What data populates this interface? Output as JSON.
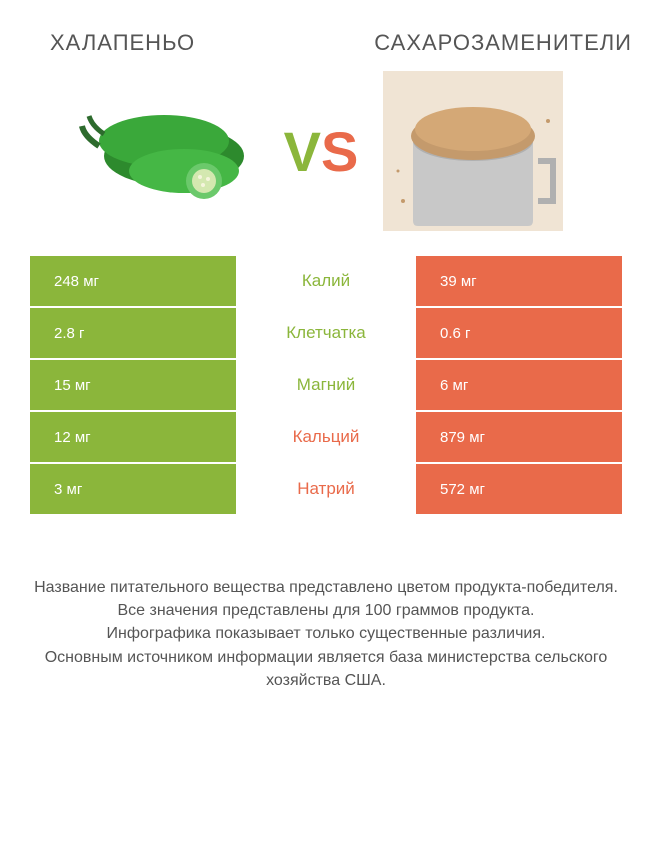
{
  "colors": {
    "left": "#8bb63b",
    "right": "#e96a4a",
    "title": "#555555",
    "footer": "#555555",
    "white": "#ffffff"
  },
  "header": {
    "left_title": "Халапеньо",
    "right_title": "Сахарозаменители"
  },
  "vs": {
    "v": "V",
    "s": "S"
  },
  "table": {
    "rows": [
      {
        "label": "Калий",
        "left": "248 мг",
        "right": "39 мг",
        "winner": "left"
      },
      {
        "label": "Клетчатка",
        "left": "2.8 г",
        "right": "0.6 г",
        "winner": "left"
      },
      {
        "label": "Магний",
        "left": "15 мг",
        "right": "6 мг",
        "winner": "left"
      },
      {
        "label": "Кальций",
        "left": "12 мг",
        "right": "879 мг",
        "winner": "right"
      },
      {
        "label": "Натрий",
        "left": "3 мг",
        "right": "572 мг",
        "winner": "right"
      }
    ]
  },
  "footer": {
    "lines": [
      "Название питательного вещества представлено цветом продукта-победителя.",
      "Все значения представлены для 100 граммов продукта.",
      "Инфографика показывает только существенные различия.",
      "Основным источником информации является база министерства сельского хозяйства США."
    ]
  }
}
